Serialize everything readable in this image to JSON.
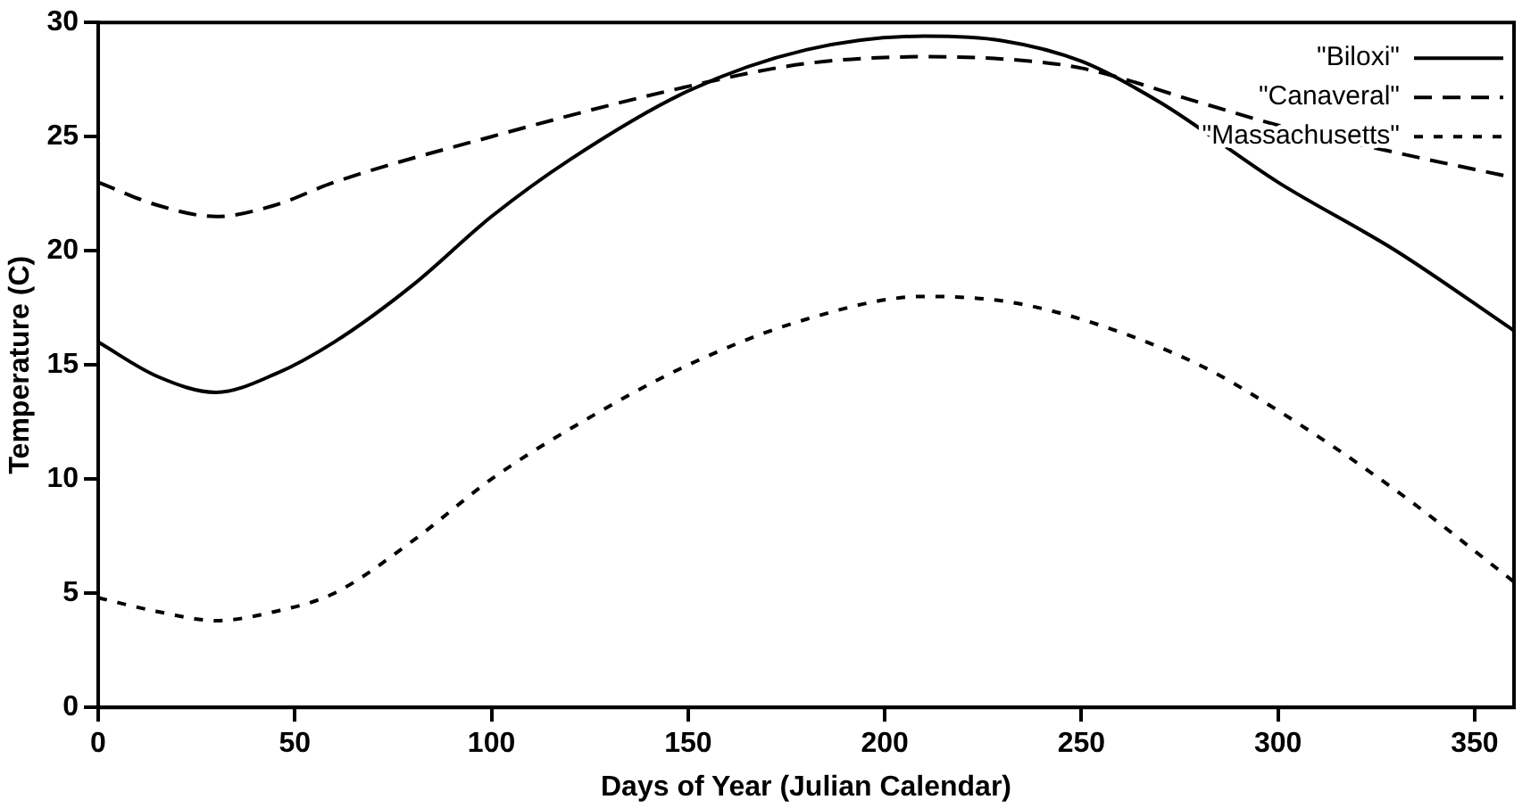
{
  "chart_data": {
    "type": "line",
    "xlabel": "Days of Year (Julian Calendar)",
    "ylabel": "Temperature (C)",
    "xlim": [
      0,
      360
    ],
    "xticks": [
      0,
      50,
      100,
      150,
      200,
      250,
      300,
      350
    ],
    "ylim": [
      0,
      30
    ],
    "yticks": [
      0,
      5,
      10,
      15,
      20,
      25,
      30
    ],
    "grid": false,
    "legend": "top right",
    "marker": "none",
    "series": [
      {
        "name": "\"Biloxi\"",
        "color": "#000000",
        "line_style": "solid",
        "x": [
          0,
          15,
          30,
          45,
          60,
          80,
          100,
          120,
          150,
          180,
          210,
          230,
          250,
          270,
          300,
          330,
          360
        ],
        "values": [
          16,
          14.5,
          13.8,
          14.6,
          16,
          18.5,
          21.5,
          24,
          27,
          28.8,
          29.4,
          29.2,
          28.3,
          26.5,
          23,
          20,
          16.5
        ]
      },
      {
        "name": "\"Canaveral\"",
        "color": "#000000",
        "line_style": "dashed",
        "x": [
          0,
          15,
          30,
          45,
          60,
          100,
          150,
          180,
          210,
          230,
          250,
          280,
          300,
          330,
          360
        ],
        "values": [
          23,
          22,
          21.5,
          22,
          23,
          25,
          27.2,
          28.2,
          28.5,
          28.4,
          28,
          26.5,
          25.5,
          24.3,
          23.2
        ]
      },
      {
        "name": "\"Massachusetts\"",
        "color": "#000000",
        "line_style": "dotted",
        "x": [
          0,
          15,
          30,
          45,
          60,
          80,
          100,
          120,
          150,
          180,
          210,
          230,
          250,
          280,
          300,
          330,
          360
        ],
        "values": [
          4.8,
          4.2,
          3.8,
          4.2,
          5,
          7.3,
          10,
          12.2,
          15,
          17,
          18,
          17.8,
          17,
          15,
          13,
          9.5,
          5.5
        ]
      }
    ]
  }
}
